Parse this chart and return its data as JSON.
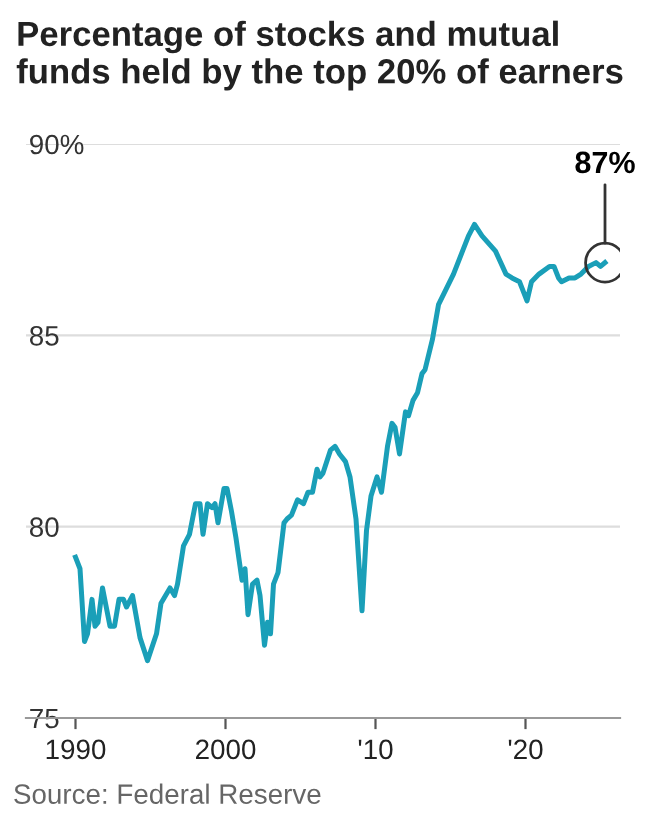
{
  "chart_data": {
    "type": "line",
    "title": "Percentage of stocks and mutual funds held by the top 20% of earners",
    "x": [
      1990,
      1990.3,
      1990.6,
      1990.8,
      1991.1,
      1991.3,
      1991.5,
      1991.8,
      1992.3,
      1992.6,
      1992.9,
      1993.2,
      1993.4,
      1993.8,
      1994.3,
      1994.8,
      1995.4,
      1995.7,
      1996.3,
      1996.6,
      1996.8,
      1997.2,
      1997.6,
      1998.0,
      1998.3,
      1998.5,
      1998.8,
      1999.1,
      1999.3,
      1999.5,
      1999.9,
      2000.1,
      2000.4,
      2000.7,
      2001.1,
      2001.3,
      2001.5,
      2001.8,
      2002.1,
      2002.3,
      2002.6,
      2002.8,
      2003.0,
      2003.2,
      2003.5,
      2003.9,
      2004.1,
      2004.4,
      2004.8,
      2005.2,
      2005.5,
      2005.8,
      2006.1,
      2006.3,
      2006.5,
      2007.0,
      2007.3,
      2007.6,
      2008.0,
      2008.3,
      2008.7,
      2009.1,
      2009.4,
      2009.7,
      2010.1,
      2010.4,
      2010.8,
      2011.1,
      2011.3,
      2011.6,
      2012.0,
      2012.2,
      2012.5,
      2012.8,
      2013.1,
      2013.3,
      2013.8,
      2014.2,
      2014.7,
      2015.2,
      2015.8,
      2016.2,
      2016.6,
      2017.1,
      2018.0,
      2018.7,
      2019.1,
      2019.6,
      2019.8,
      2020.1,
      2020.4,
      2020.9,
      2021.6,
      2021.9,
      2022.2,
      2022.4,
      2022.9,
      2023.3,
      2023.7,
      2024.2,
      2024.7,
      2025.0,
      2025.3
    ],
    "series": [
      {
        "color": "#1a9fb8",
        "values": [
          79.2,
          78.9,
          77.0,
          77.2,
          78.1,
          77.4,
          77.5,
          78.4,
          77.4,
          77.4,
          78.1,
          78.1,
          77.9,
          78.2,
          77.1,
          76.5,
          77.2,
          78.0,
          78.4,
          78.2,
          78.5,
          79.5,
          79.8,
          80.6,
          80.6,
          79.8,
          80.6,
          80.5,
          80.6,
          80.1,
          81.0,
          81.0,
          80.4,
          79.7,
          78.6,
          78.9,
          77.7,
          78.5,
          78.6,
          78.2,
          76.9,
          77.5,
          77.2,
          78.5,
          78.8,
          80.1,
          80.2,
          80.3,
          80.7,
          80.6,
          80.9,
          80.9,
          81.5,
          81.3,
          81.4,
          82.0,
          82.1,
          81.9,
          81.7,
          81.3,
          80.2,
          77.8,
          79.9,
          80.8,
          81.3,
          80.9,
          82.1,
          82.7,
          82.6,
          81.9,
          83.0,
          82.9,
          83.3,
          83.5,
          84.0,
          84.1,
          84.9,
          85.8,
          86.2,
          86.6,
          87.2,
          87.6,
          87.9,
          87.6,
          87.2,
          86.6,
          86.5,
          86.4,
          86.2,
          85.9,
          86.4,
          86.6,
          86.8,
          86.8,
          86.5,
          86.4,
          86.5,
          86.5,
          86.6,
          86.8,
          86.9,
          86.8,
          86.9
        ]
      }
    ],
    "xlim": [
      1986.7,
      2026.3
    ],
    "ylim": [
      75,
      90
    ],
    "xticks": [
      1990,
      2000,
      {
        "value": 2010,
        "label": "'10"
      },
      {
        "value": 2020,
        "label": "'20"
      }
    ],
    "yticks": [
      75,
      80,
      85,
      {
        "value": 90,
        "label": "90%"
      }
    ],
    "grid": "y",
    "marker": "none",
    "line_style": "solid",
    "annotations": [
      {
        "text": "87%",
        "x": 2025.3,
        "y": 86.9
      },
      "Source: Federal Reserve"
    ]
  }
}
